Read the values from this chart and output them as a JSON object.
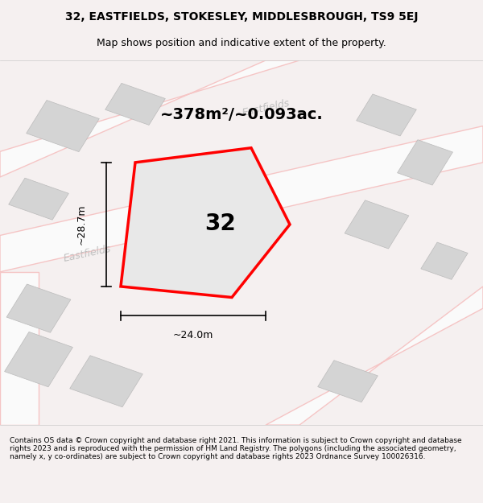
{
  "title_line1": "32, EASTFIELDS, STOKESLEY, MIDDLESBROUGH, TS9 5EJ",
  "title_line2": "Map shows position and indicative extent of the property.",
  "area_text": "~378m²/~0.093ac.",
  "property_number": "32",
  "dim_width": "~24.0m",
  "dim_height": "~28.7m",
  "footer_text": "Contains OS data © Crown copyright and database right 2021. This information is subject to Crown copyright and database rights 2023 and is reproduced with the permission of HM Land Registry. The polygons (including the associated geometry, namely x, y co-ordinates) are subject to Crown copyright and database rights 2023 Ordnance Survey 100026316.",
  "bg_color": "#f5f0f0",
  "map_bg": "#f0eded",
  "road_color": "#f5c0c0",
  "road_fill": "#ffffff",
  "building_fill": "#d8d8d8",
  "building_stroke": "#cccccc",
  "plot_fill": "#e8e8e8",
  "plot_stroke": "#ff0000",
  "dim_line_color": "#000000",
  "street_label_color": "#b0b0b0",
  "figsize": [
    6.0,
    6.25
  ],
  "dpi": 100
}
